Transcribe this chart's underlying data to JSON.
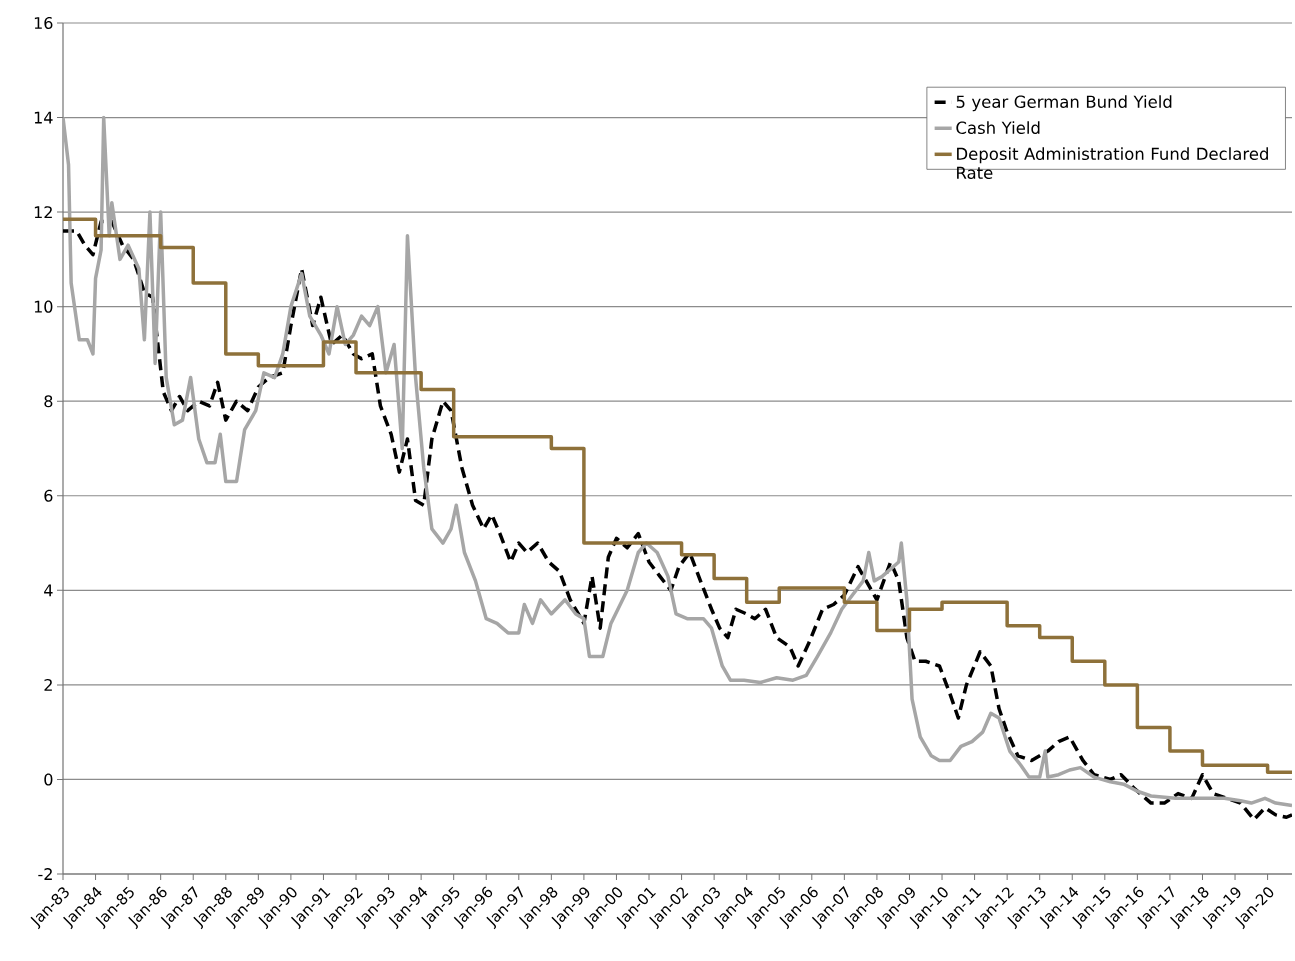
{
  "chart_data": {
    "type": "line",
    "xlim": [
      "1983-01",
      "2020-10"
    ],
    "ylim": [
      -2,
      16
    ],
    "yticks": [
      -2,
      0,
      2,
      4,
      6,
      8,
      10,
      12,
      14,
      16
    ],
    "xticks": [
      {
        "value": "1983-01",
        "label": "Jan-83"
      },
      {
        "value": "1984-01",
        "label": "Jan-84"
      },
      {
        "value": "1985-01",
        "label": "Jan-85"
      },
      {
        "value": "1986-01",
        "label": "Jan-86"
      },
      {
        "value": "1987-01",
        "label": "Jan-87"
      },
      {
        "value": "1988-01",
        "label": "Jan-88"
      },
      {
        "value": "1989-01",
        "label": "Jan-89"
      },
      {
        "value": "1990-01",
        "label": "Jan-90"
      },
      {
        "value": "1991-01",
        "label": "Jan-91"
      },
      {
        "value": "1992-01",
        "label": "Jan-92"
      },
      {
        "value": "1993-01",
        "label": "Jan-93"
      },
      {
        "value": "1994-01",
        "label": "Jan-94"
      },
      {
        "value": "1995-01",
        "label": "Jan-95"
      },
      {
        "value": "1996-01",
        "label": "Jan-96"
      },
      {
        "value": "1997-01",
        "label": "Jan-97"
      },
      {
        "value": "1998-01",
        "label": "Jan-98"
      },
      {
        "value": "1999-01",
        "label": "Jan-99"
      },
      {
        "value": "2000-01",
        "label": "Jan-00"
      },
      {
        "value": "2001-01",
        "label": "Jan-01"
      },
      {
        "value": "2002-01",
        "label": "Jan-02"
      },
      {
        "value": "2003-01",
        "label": "Jan-03"
      },
      {
        "value": "2004-01",
        "label": "Jan-04"
      },
      {
        "value": "2005-01",
        "label": "Jan-05"
      },
      {
        "value": "2006-01",
        "label": "Jan-06"
      },
      {
        "value": "2007-01",
        "label": "Jan-07"
      },
      {
        "value": "2008-01",
        "label": "Jan-08"
      },
      {
        "value": "2009-01",
        "label": "Jan-09"
      },
      {
        "value": "2010-01",
        "label": "Jan-10"
      },
      {
        "value": "2011-01",
        "label": "Jan-11"
      },
      {
        "value": "2012-01",
        "label": "Jan-12"
      },
      {
        "value": "2013-01",
        "label": "Jan-13"
      },
      {
        "value": "2014-01",
        "label": "Jan-14"
      },
      {
        "value": "2015-01",
        "label": "Jan-15"
      },
      {
        "value": "2016-01",
        "label": "Jan-16"
      },
      {
        "value": "2017-01",
        "label": "Jan-17"
      },
      {
        "value": "2018-01",
        "label": "Jan-18"
      },
      {
        "value": "2019-01",
        "label": "Jan-19"
      },
      {
        "value": "2020-01",
        "label": "Jan-20"
      }
    ],
    "grid": "y",
    "legend": "top right",
    "marker": "none",
    "series": [
      {
        "name": "5 year German Bund Yield",
        "color": "#000000",
        "line_style": "dashed",
        "x": [
          "1983-01",
          "1983-06",
          "1983-09",
          "1983-12",
          "1984-03",
          "1984-07",
          "1984-11",
          "1985-03",
          "1985-07",
          "1985-10",
          "1986-02",
          "1986-05",
          "1986-08",
          "1986-11",
          "1987-03",
          "1987-07",
          "1987-10",
          "1988-01",
          "1988-05",
          "1988-09",
          "1989-01",
          "1989-05",
          "1989-10",
          "1990-01",
          "1990-05",
          "1990-09",
          "1990-12",
          "1991-04",
          "1991-08",
          "1991-12",
          "1992-03",
          "1992-07",
          "1992-10",
          "1993-02",
          "1993-05",
          "1993-08",
          "1993-11",
          "1994-02",
          "1994-05",
          "1994-09",
          "1994-12",
          "1995-04",
          "1995-08",
          "1995-12",
          "1996-03",
          "1996-06",
          "1996-10",
          "1997-01",
          "1997-04",
          "1997-08",
          "1997-12",
          "1998-04",
          "1998-08",
          "1998-11",
          "1999-01",
          "1999-04",
          "1999-07",
          "1999-10",
          "2000-01",
          "2000-05",
          "2000-09",
          "2001-01",
          "2001-05",
          "2001-09",
          "2001-12",
          "2002-04",
          "2002-08",
          "2002-12",
          "2003-03",
          "2003-06",
          "2003-09",
          "2004-01",
          "2004-04",
          "2004-08",
          "2004-12",
          "2005-05",
          "2005-08",
          "2005-12",
          "2006-05",
          "2006-09",
          "2007-01",
          "2007-06",
          "2007-09",
          "2008-01",
          "2008-06",
          "2008-09",
          "2008-12",
          "2009-03",
          "2009-07",
          "2009-12",
          "2010-04",
          "2010-07",
          "2010-10",
          "2011-03",
          "2011-07",
          "2011-10",
          "2012-01",
          "2012-05",
          "2012-10",
          "2013-04",
          "2013-08",
          "2013-12",
          "2014-05",
          "2014-09",
          "2015-03",
          "2015-07",
          "2015-12",
          "2016-06",
          "2016-11",
          "2017-04",
          "2017-09",
          "2018-01",
          "2018-05",
          "2018-10",
          "2019-03",
          "2019-08",
          "2019-12",
          "2020-04",
          "2020-08",
          "2020-10"
        ],
        "values": [
          11.6,
          11.6,
          11.3,
          11.1,
          11.8,
          11.8,
          11.3,
          11.0,
          10.3,
          10.2,
          8.2,
          7.8,
          8.1,
          7.8,
          8.0,
          7.9,
          8.4,
          7.6,
          8.0,
          7.8,
          8.3,
          8.5,
          8.6,
          9.6,
          10.8,
          9.6,
          10.2,
          9.2,
          9.4,
          9.0,
          8.9,
          9.0,
          7.9,
          7.3,
          6.5,
          7.2,
          5.9,
          5.8,
          7.2,
          8.0,
          7.8,
          6.6,
          5.8,
          5.3,
          5.6,
          5.2,
          4.6,
          5.0,
          4.8,
          5.0,
          4.6,
          4.4,
          3.8,
          3.5,
          3.3,
          4.3,
          3.2,
          4.7,
          5.1,
          4.9,
          5.2,
          4.6,
          4.3,
          4.0,
          4.5,
          4.8,
          4.2,
          3.6,
          3.2,
          3.0,
          3.6,
          3.5,
          3.4,
          3.6,
          3.0,
          2.8,
          2.4,
          2.9,
          3.6,
          3.7,
          3.9,
          4.5,
          4.2,
          3.8,
          4.6,
          4.2,
          3.0,
          2.5,
          2.5,
          2.4,
          1.8,
          1.3,
          2.0,
          2.7,
          2.4,
          1.5,
          1.0,
          0.5,
          0.4,
          0.6,
          0.8,
          0.9,
          0.4,
          0.1,
          0.0,
          0.1,
          -0.2,
          -0.5,
          -0.5,
          -0.3,
          -0.4,
          0.1,
          -0.3,
          -0.4,
          -0.5,
          -0.85,
          -0.6,
          -0.75,
          -0.8,
          -0.75
        ]
      },
      {
        "name": "Cash Yield",
        "color": "#a6a6a6",
        "line_style": "solid",
        "x": [
          "1983-01",
          "1983-03",
          "1983-04",
          "1983-07",
          "1983-10",
          "1983-12",
          "1984-01",
          "1984-03",
          "1984-04",
          "1984-06",
          "1984-07",
          "1984-10",
          "1985-01",
          "1985-05",
          "1985-07",
          "1985-09",
          "1985-11",
          "1986-01",
          "1986-03",
          "1986-06",
          "1986-09",
          "1986-12",
          "1987-03",
          "1987-06",
          "1987-09",
          "1987-11",
          "1988-01",
          "1988-05",
          "1988-08",
          "1988-12",
          "1989-03",
          "1989-07",
          "1989-10",
          "1990-01",
          "1990-05",
          "1990-08",
          "1990-12",
          "1991-03",
          "1991-06",
          "1991-09",
          "1991-12",
          "1992-03",
          "1992-06",
          "1992-09",
          "1992-12",
          "1993-03",
          "1993-06",
          "1993-08",
          "1993-11",
          "1994-02",
          "1994-05",
          "1994-09",
          "1994-12",
          "1995-02",
          "1995-05",
          "1995-09",
          "1996-01",
          "1996-05",
          "1996-09",
          "1997-01",
          "1997-03",
          "1997-06",
          "1997-09",
          "1998-01",
          "1998-06",
          "1998-10",
          "1999-01",
          "1999-03",
          "1999-08",
          "1999-11",
          "2000-05",
          "2000-09",
          "2000-12",
          "2001-04",
          "2001-08",
          "2001-11",
          "2002-03",
          "2002-09",
          "2002-12",
          "2003-04",
          "2003-07",
          "2003-12",
          "2004-06",
          "2004-12",
          "2005-06",
          "2005-11",
          "2006-03",
          "2006-08",
          "2006-12",
          "2007-04",
          "2007-08",
          "2007-10",
          "2007-12",
          "2008-03",
          "2008-09",
          "2008-10",
          "2008-12",
          "2009-02",
          "2009-05",
          "2009-09",
          "2009-12",
          "2010-04",
          "2010-08",
          "2010-12",
          "2011-04",
          "2011-07",
          "2011-10",
          "2012-02",
          "2012-06",
          "2012-09",
          "2013-01",
          "2013-03",
          "2013-04",
          "2013-08",
          "2013-12",
          "2014-04",
          "2014-09",
          "2015-03",
          "2015-08",
          "2016-01",
          "2016-06",
          "2017-03",
          "2018-03",
          "2018-09",
          "2019-03",
          "2019-07",
          "2019-12",
          "2020-04",
          "2020-10"
        ],
        "values": [
          14.0,
          13.0,
          10.5,
          9.3,
          9.3,
          9.0,
          10.6,
          11.2,
          14.0,
          11.5,
          12.2,
          11.0,
          11.3,
          10.8,
          9.3,
          12.0,
          8.8,
          12.0,
          8.5,
          7.5,
          7.6,
          8.5,
          7.2,
          6.7,
          6.7,
          7.3,
          6.3,
          6.3,
          7.4,
          7.8,
          8.6,
          8.5,
          9.0,
          10.0,
          10.7,
          9.8,
          9.4,
          9.0,
          10.0,
          9.2,
          9.4,
          9.8,
          9.6,
          10.0,
          8.6,
          9.2,
          7.0,
          11.5,
          8.5,
          6.6,
          5.3,
          5.0,
          5.3,
          5.8,
          4.8,
          4.2,
          3.4,
          3.3,
          3.1,
          3.1,
          3.7,
          3.3,
          3.8,
          3.5,
          3.8,
          3.5,
          3.4,
          2.6,
          2.6,
          3.3,
          4.0,
          4.8,
          5.0,
          4.8,
          4.3,
          3.5,
          3.4,
          3.4,
          3.2,
          2.4,
          2.1,
          2.1,
          2.05,
          2.15,
          2.1,
          2.2,
          2.6,
          3.1,
          3.6,
          3.9,
          4.2,
          4.8,
          4.2,
          4.3,
          4.6,
          5.0,
          3.8,
          1.7,
          0.9,
          0.5,
          0.4,
          0.4,
          0.7,
          0.8,
          1.0,
          1.4,
          1.3,
          0.6,
          0.3,
          0.05,
          0.05,
          0.6,
          0.05,
          0.1,
          0.2,
          0.25,
          0.05,
          -0.05,
          -0.1,
          -0.25,
          -0.35,
          -0.4,
          -0.4,
          -0.4,
          -0.45,
          -0.5,
          -0.4,
          -0.5,
          -0.55
        ]
      },
      {
        "name": "Deposit Administration Fund Declared Rate",
        "color": "#8e713a",
        "type": "step",
        "line_style": "solid",
        "x": [
          "1983-01",
          "1984-01",
          "1986-01",
          "1987-01",
          "1988-01",
          "1989-01",
          "1991-01",
          "1992-01",
          "1994-01",
          "1995-01",
          "1998-01",
          "1999-01",
          "2002-01",
          "2003-01",
          "2004-01",
          "2005-01",
          "2007-01",
          "2008-01",
          "2009-01",
          "2010-01",
          "2012-01",
          "2013-01",
          "2014-01",
          "2015-01",
          "2016-01",
          "2017-01",
          "2018-01",
          "2020-01",
          "2020-10"
        ],
        "values": [
          11.85,
          11.5,
          11.25,
          10.5,
          9.0,
          8.75,
          9.25,
          8.6,
          8.25,
          7.25,
          7.0,
          5.0,
          4.75,
          4.25,
          3.75,
          4.05,
          3.75,
          3.15,
          3.6,
          3.75,
          3.25,
          3.0,
          2.5,
          2.0,
          1.1,
          0.6,
          0.3,
          0.15,
          0.15
        ]
      }
    ]
  }
}
